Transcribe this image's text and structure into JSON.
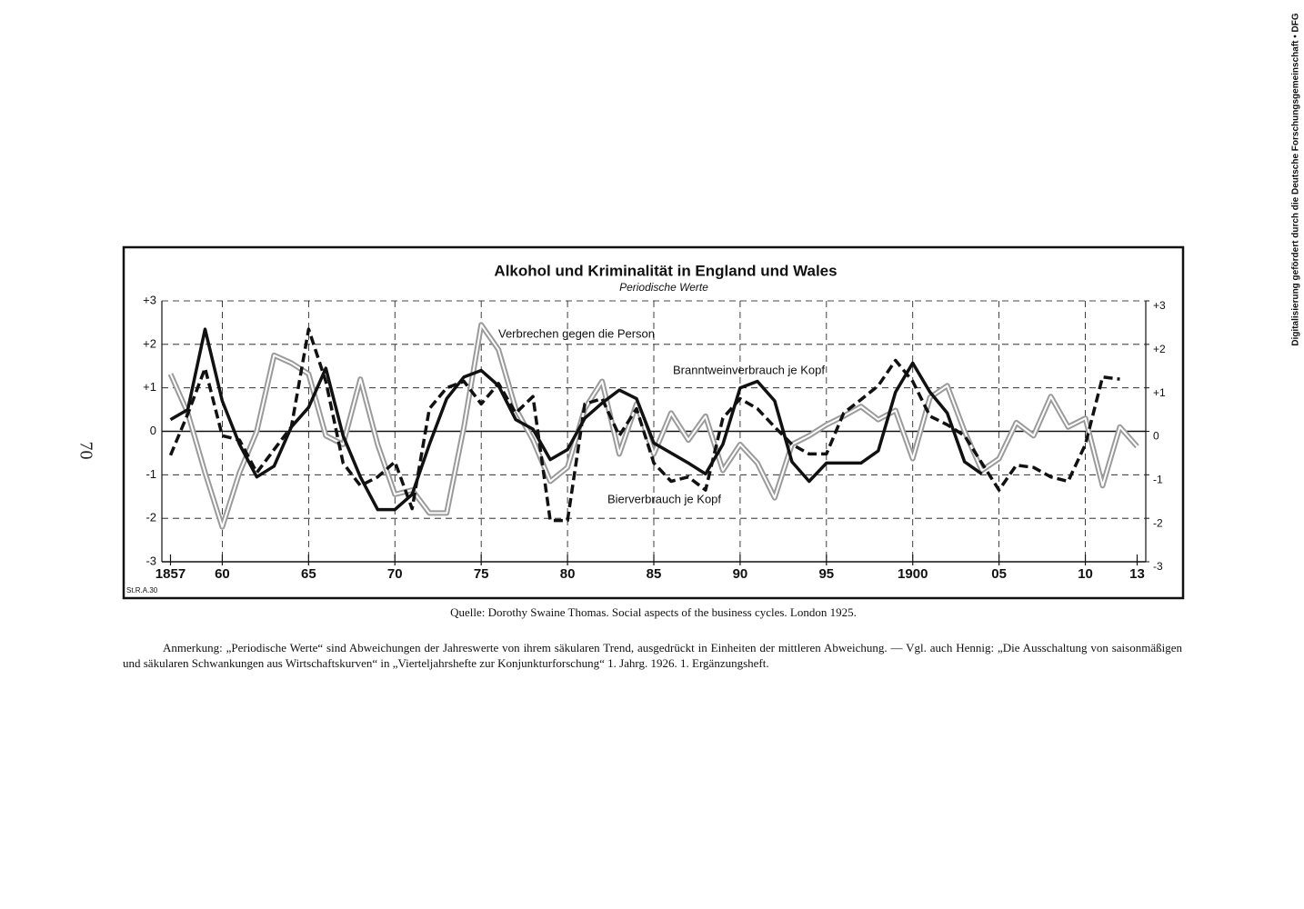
{
  "page": {
    "page_number": "70",
    "sidebar": "Digitalisierung gefördert durch die Deutsche Forschungsgemeinschaft • DFG",
    "source": "Quelle: Dorothy Swaine Thomas. Social aspects of the business cycles. London 1925.",
    "note": "Anmerkung: „Periodische Werte“ sind Abweichungen der Jahreswerte von ihrem säkularen Trend, ausgedrückt in Einheiten der mittleren Abweichung. — Vgl. auch Hennig: „Die Ausschaltung von saisonmäßigen und säkularen Schwankungen aus Wirtschaftskurven“ in „Vierteljahrshefte zur Konjunkturforschung“ 1. Jahrg. 1926. 1. Ergänzungsheft."
  },
  "chart_data": {
    "type": "line",
    "title": "Alkohol und Kriminalität in England und Wales",
    "subtitle": "Periodische Werte",
    "annotation": "St.R.A.30",
    "grid": true,
    "x": [
      1857,
      1858,
      1859,
      1860,
      1861,
      1862,
      1863,
      1864,
      1865,
      1866,
      1867,
      1868,
      1869,
      1870,
      1871,
      1872,
      1873,
      1874,
      1875,
      1876,
      1877,
      1878,
      1879,
      1880,
      1881,
      1882,
      1883,
      1884,
      1885,
      1886,
      1887,
      1888,
      1889,
      1890,
      1891,
      1892,
      1893,
      1894,
      1895,
      1896,
      1897,
      1898,
      1899,
      1900,
      1901,
      1902,
      1903,
      1904,
      1905,
      1906,
      1907,
      1908,
      1909,
      1910,
      1911,
      1912,
      1913
    ],
    "xlim": [
      1856.5,
      1913.5
    ],
    "xticks": [
      {
        "value": 1857,
        "label": "1857"
      },
      {
        "value": 1860,
        "label": "60"
      },
      {
        "value": 1865,
        "label": "65"
      },
      {
        "value": 1870,
        "label": "70"
      },
      {
        "value": 1875,
        "label": "75"
      },
      {
        "value": 1880,
        "label": "80"
      },
      {
        "value": 1885,
        "label": "85"
      },
      {
        "value": 1890,
        "label": "90"
      },
      {
        "value": 1895,
        "label": "95"
      },
      {
        "value": 1900,
        "label": "1900"
      },
      {
        "value": 1905,
        "label": "05"
      },
      {
        "value": 1910,
        "label": "10"
      },
      {
        "value": 1913,
        "label": "13"
      }
    ],
    "ylim": [
      -3,
      3
    ],
    "yticks": [
      {
        "value": 3,
        "label": "+3"
      },
      {
        "value": 2,
        "label": "+2"
      },
      {
        "value": 1,
        "label": "+1"
      },
      0,
      -1,
      -2,
      -3
    ],
    "y2lim": [
      -3,
      3
    ],
    "y2ticks": [
      {
        "value": 3,
        "label": "+3"
      },
      {
        "value": 2,
        "label": "+2"
      },
      {
        "value": 1,
        "label": "+1"
      },
      0,
      -1,
      -2,
      -3
    ],
    "series": [
      {
        "name": "Verbrechen gegen die Person",
        "color": "#9a9a9a",
        "style": "double",
        "values": [
          1.32,
          0.42,
          -0.95,
          -2.2,
          -0.95,
          0,
          1.75,
          1.57,
          1.32,
          -0.1,
          -0.3,
          1.2,
          -0.3,
          -1.45,
          -1.35,
          -1.88,
          -1.88,
          0.1,
          2.45,
          1.88,
          0.52,
          -0.2,
          -1.15,
          -0.83,
          0.52,
          1.15,
          -0.52,
          0.63,
          -0.52,
          0.42,
          -0.2,
          0.35,
          -0.9,
          -0.3,
          -0.73,
          -1.53,
          -0.3,
          -0.1,
          0.15,
          0.35,
          0.57,
          0.27,
          0.48,
          -0.63,
          0.78,
          1.05,
          0,
          -0.9,
          -0.63,
          0.2,
          -0.1,
          0.8,
          0.1,
          0.3,
          -1.25,
          0.1,
          -0.35
        ]
      },
      {
        "name": "Branntweinverbrauch je Kopf",
        "color": "#111111",
        "style": "solid",
        "values": [
          0.27,
          0.5,
          2.35,
          0.7,
          -0.3,
          -1.05,
          -0.8,
          0.1,
          0.55,
          1.45,
          -0.1,
          -1.05,
          -1.8,
          -1.8,
          -1.45,
          -0.3,
          0.75,
          1.25,
          1.4,
          1.05,
          0.27,
          0.05,
          -0.65,
          -0.42,
          0.3,
          0.65,
          0.95,
          0.75,
          -0.27,
          -0.5,
          -0.73,
          -0.98,
          -0.3,
          1.0,
          1.15,
          0.7,
          -0.7,
          -1.15,
          -0.73,
          -0.73,
          -0.73,
          -0.45,
          0.9,
          1.57,
          0.9,
          0.42,
          -0.7,
          -0.98,
          null,
          null,
          null,
          null,
          null,
          null,
          null,
          null,
          null
        ]
      },
      {
        "name": "Bierverbrauch je Kopf",
        "color": "#111111",
        "style": "dashed",
        "values": [
          -0.55,
          0.4,
          1.45,
          -0.1,
          -0.2,
          -0.95,
          -0.42,
          0.1,
          2.35,
          1.15,
          -0.73,
          -1.25,
          -1.05,
          -0.7,
          -1.78,
          0.52,
          1.0,
          1.15,
          0.63,
          1.1,
          0.42,
          0.8,
          -2.05,
          -2.05,
          0.63,
          0.75,
          -0.1,
          0.52,
          -0.73,
          -1.15,
          -1.05,
          -1.35,
          0.3,
          0.75,
          0.52,
          0.1,
          -0.3,
          -0.52,
          -0.52,
          0.42,
          0.73,
          1.05,
          1.63,
          1.15,
          0.35,
          0.15,
          -0.1,
          -0.73,
          -1.35,
          -0.78,
          -0.83,
          -1.05,
          -1.15,
          -0.3,
          1.25,
          1.2,
          null
        ]
      }
    ]
  }
}
